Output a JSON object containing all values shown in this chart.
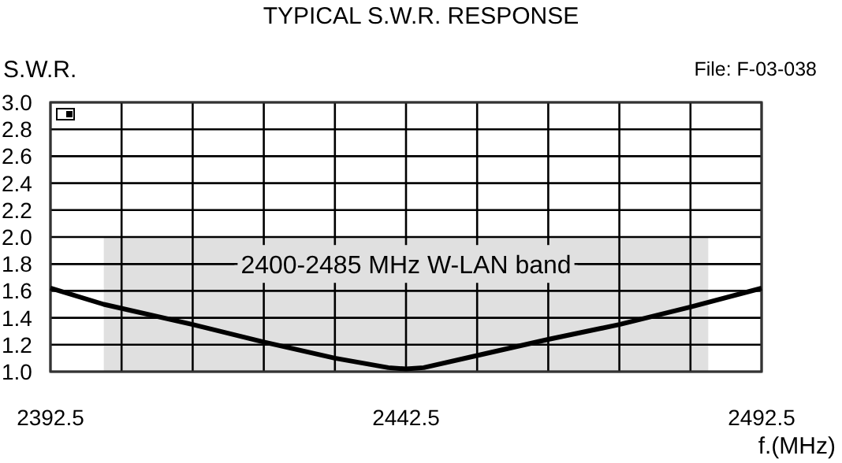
{
  "chart_data": {
    "type": "line",
    "title": "TYPICAL S.W.R. RESPONSE",
    "ylabel": "S.W.R.",
    "xlabel": "f.(MHz)",
    "annotations": [
      "File:  F-03-038"
    ],
    "x": [
      2392.5,
      2400,
      2412.5,
      2422.5,
      2432.5,
      2440,
      2442.5,
      2445,
      2452.5,
      2462.5,
      2472.5,
      2482.5,
      2492.5
    ],
    "series": [
      {
        "color": "#000000",
        "values": [
          1.62,
          1.5,
          1.35,
          1.22,
          1.1,
          1.03,
          1.02,
          1.03,
          1.12,
          1.24,
          1.35,
          1.48,
          1.62
        ]
      }
    ],
    "xlim": [
      2392.5,
      2492.5
    ],
    "xticks": [
      2392.5,
      {
        "value": 2402.5,
        "label": null
      },
      {
        "value": 2412.5,
        "label": null
      },
      {
        "value": 2422.5,
        "label": null
      },
      {
        "value": 2432.5,
        "label": null
      },
      2442.5,
      {
        "value": 2452.5,
        "label": null
      },
      {
        "value": 2462.5,
        "label": null
      },
      {
        "value": 2472.5,
        "label": null
      },
      {
        "value": 2482.5,
        "label": null
      },
      2492.5
    ],
    "ylim": [
      1.0,
      3.0
    ],
    "yticks": [
      {
        "value": 1.0,
        "label": "1.0"
      },
      1.2,
      1.4,
      1.6,
      1.8,
      {
        "value": 2.0,
        "label": "2.0"
      },
      2.2,
      2.4,
      2.6,
      2.8,
      {
        "value": 3.0,
        "label": "3.0"
      }
    ],
    "bands": [
      {
        "axis": "x",
        "from": 2400,
        "to": 2485,
        "label": "2400-2485 MHz W-LAN band",
        "color": "#e0e0e0"
      }
    ],
    "grid": true,
    "line_style": "solid",
    "marker": "none"
  }
}
